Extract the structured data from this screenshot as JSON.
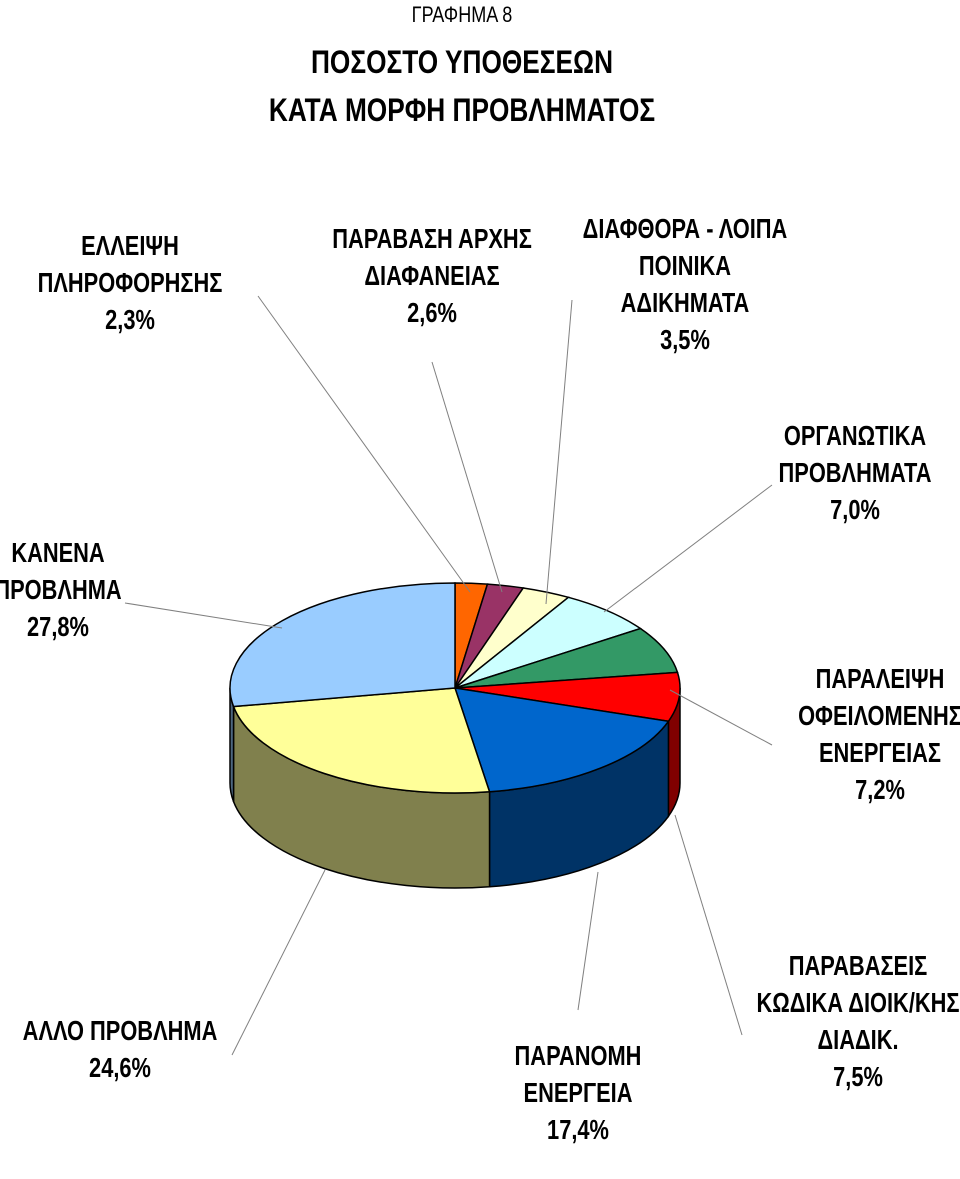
{
  "chart_data": {
    "type": "pie",
    "pretitle": "ΓΡΑΦΗΜΑ 8",
    "title_lines": [
      "ΠΟΣΟΣΤΟ ΥΠΟΘΕΣΕΩΝ",
      "ΚΑΤΑ ΜΟΡΦΗ ΠΡΟΒΛΗΜΑΤΟΣ"
    ],
    "slices": [
      {
        "label_lines": [
          "ΕΛΛΕΙΨΗ",
          "ΠΛΗΡΟΦΟΡΗΣΗΣ"
        ],
        "value": 2.3,
        "value_text": "2,3%",
        "color": "#ff6600"
      },
      {
        "label_lines": [
          "ΠΑΡΑΒΑΣΗ ΑΡΧΗΣ",
          "ΔΙΑΦΑΝΕΙΑΣ"
        ],
        "value": 2.6,
        "value_text": "2,6%",
        "color": "#993366"
      },
      {
        "label_lines": [
          "ΔΙΑΦΘΟΡΑ - ΛΟΙΠΑ",
          "ΠΟΙΝΙΚΑ",
          "ΑΔΙΚΗΜΑΤΑ"
        ],
        "value": 3.5,
        "value_text": "3,5%",
        "color": "#ffffcc"
      },
      {
        "label_lines": [
          "ΟΡΓΑΝΩΤΙΚΑ",
          "ΠΡΟΒΛΗΜΑΤΑ"
        ],
        "value": 7.0,
        "value_text": "7,0%",
        "color": "#ccffff"
      },
      {
        "label_lines": [
          "ΠΑΡΑΛΕΙΨΗ",
          "ΟΦΕΙΛΟΜΕΝΗΣ",
          "ΕΝΕΡΓΕΙΑΣ"
        ],
        "value": 7.2,
        "value_text": "7,2%",
        "color": "#339966"
      },
      {
        "label_lines": [
          "ΠΑΡΑΒΑΣΕΙΣ",
          "ΚΩΔΙΚΑ ΔΙΟΙΚ/ΚΗΣ",
          "ΔΙΑΔΙΚ."
        ],
        "value": 7.5,
        "value_text": "7,5%",
        "color": "#ff0000"
      },
      {
        "label_lines": [
          "ΠΑΡΑΝΟΜΗ",
          "ΕΝΕΡΓΕΙΑ"
        ],
        "value": 17.4,
        "value_text": "17,4%",
        "color": "#0066cc"
      },
      {
        "label_lines": [
          "ΑΛΛΟ ΠΡΟΒΛΗΜΑ"
        ],
        "value": 24.6,
        "value_text": "24,6%",
        "color": "#ffff99"
      },
      {
        "label_lines": [
          "ΚΑΝΕΝΑ",
          "ΠΡΟΒΛΗΜΑ"
        ],
        "value": 27.8,
        "value_text": "27,8%",
        "color": "#99ccff"
      }
    ],
    "legend": "none",
    "style": "3d-pie"
  }
}
